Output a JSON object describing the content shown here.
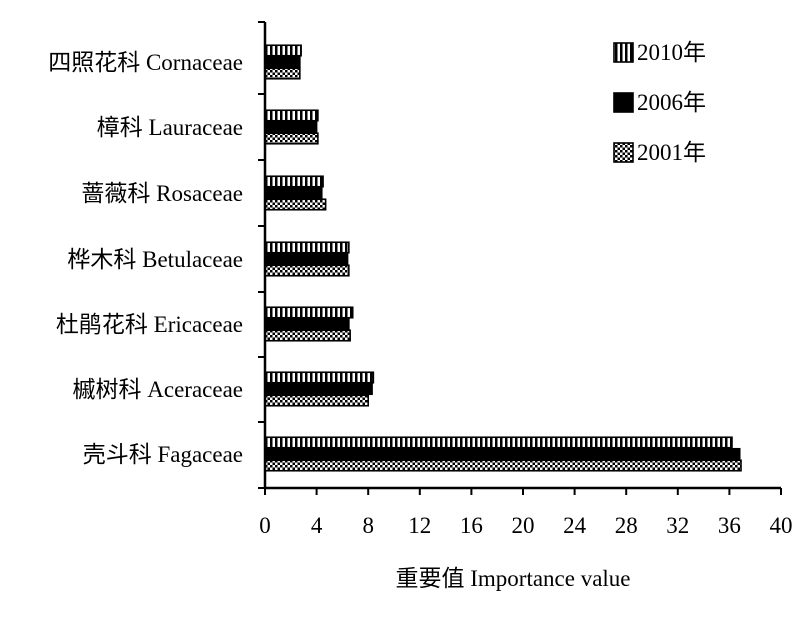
{
  "chart_data": {
    "type": "bar",
    "orientation": "horizontal",
    "categories": [
      "壳斗科 Fagaceae",
      "槭树科 Aceraceae",
      "杜鹃花科 Ericaceae",
      "桦木科 Betulaceae",
      "蔷薇科 Rosaceae",
      "樟科 Lauraceae",
      "四照花科 Cornaceae"
    ],
    "series": [
      {
        "name": "2010年",
        "pattern": "vertical-stripes",
        "values": [
          36.2,
          8.4,
          6.8,
          6.5,
          4.5,
          4.1,
          2.8
        ]
      },
      {
        "name": "2006年",
        "pattern": "solid",
        "values": [
          36.8,
          8.3,
          6.5,
          6.4,
          4.4,
          4.0,
          2.7
        ]
      },
      {
        "name": "2001年",
        "pattern": "checker",
        "values": [
          36.9,
          8.0,
          6.6,
          6.5,
          4.7,
          4.1,
          2.7
        ]
      }
    ],
    "xlabel": "重要值 Importance value",
    "ylabel": "",
    "xlim": [
      0,
      40
    ],
    "xticks": [
      0,
      4,
      8,
      12,
      16,
      20,
      24,
      28,
      32,
      36,
      40
    ],
    "grid": false,
    "legend_position": "top-right",
    "colors": {
      "bar_fill": "#000000",
      "bar_pattern_bg": "#ffffff",
      "axis": "#000000"
    }
  }
}
